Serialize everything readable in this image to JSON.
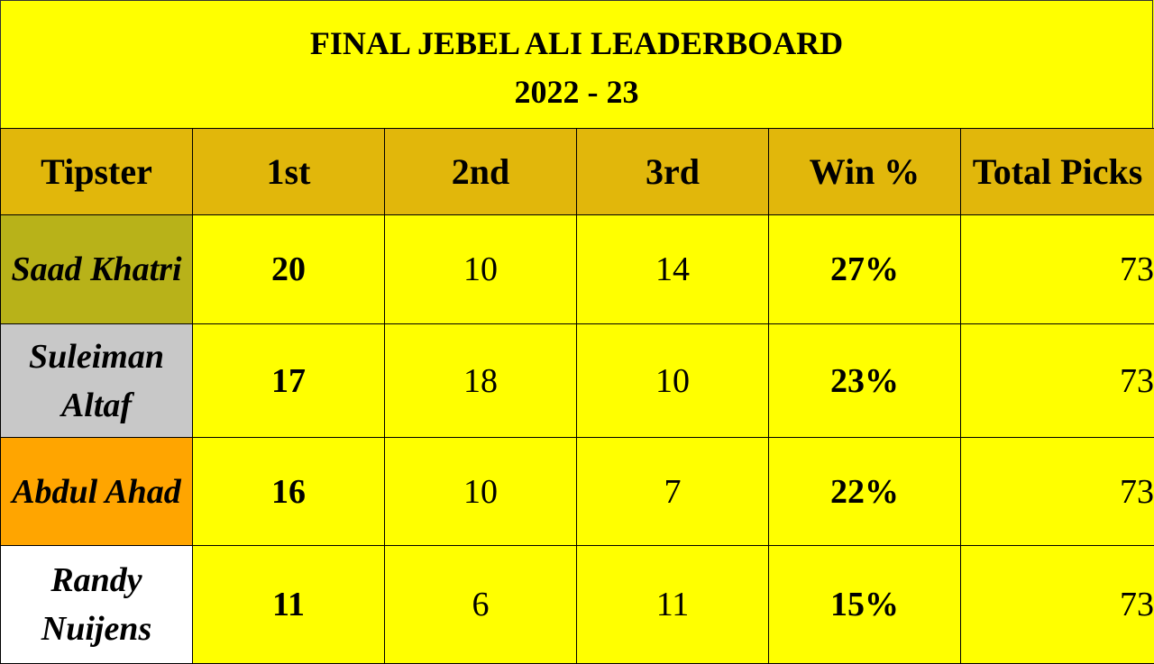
{
  "title": {
    "line1": "FINAL JEBEL ALI LEADERBOARD",
    "line2": "2022 - 23"
  },
  "headers": [
    "Tipster",
    "1st",
    "2nd",
    "3rd",
    "Win %",
    "Total Picks"
  ],
  "header_color": "#e1b70b",
  "background_color": "#ffff00",
  "rows": [
    {
      "tipster": "Saad Khatri",
      "first": "20",
      "second": "10",
      "third": "14",
      "win_pct": "27%",
      "total_picks": "73",
      "name_color": "#b8b219"
    },
    {
      "tipster": "Suleiman Altaf",
      "first": "17",
      "second": "18",
      "third": "10",
      "win_pct": "23%",
      "total_picks": "73",
      "name_color": "#c8c8c8"
    },
    {
      "tipster": "Abdul Ahad",
      "first": "16",
      "second": "10",
      "third": "7",
      "win_pct": "22%",
      "total_picks": "73",
      "name_color": "#ffa500"
    },
    {
      "tipster": "Randy Nuijens",
      "first": "11",
      "second": "6",
      "third": "11",
      "win_pct": "15%",
      "total_picks": "73",
      "name_color": "#ffffff"
    }
  ]
}
